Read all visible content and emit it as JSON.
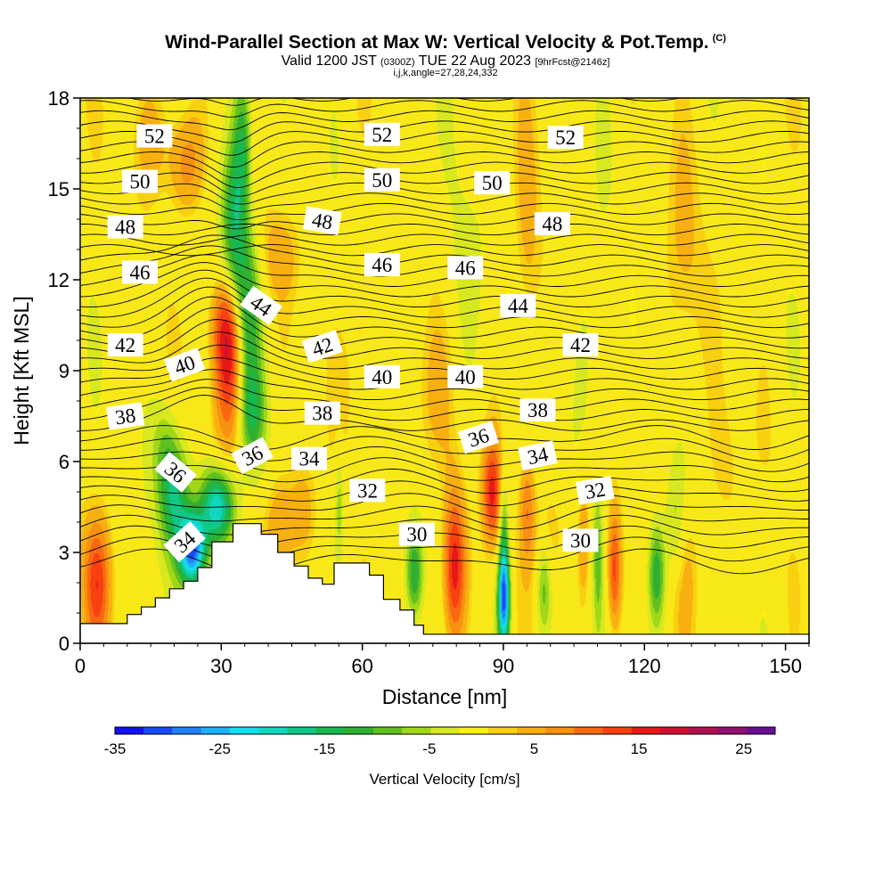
{
  "header": {
    "title": "Wind-Parallel Section at Max W: Vertical Velocity & Pot.Temp.",
    "title_unit": "(C)",
    "subtitle_a": "Valid 1200 JST",
    "subtitle_b": "(0300Z)",
    "subtitle_c": "TUE 22 Aug 2023",
    "subtitle_d": "[9hrFcst@2146z]",
    "subtitle2": "i,j,k,angle=27,28,24,332"
  },
  "chart_data": {
    "type": "heatmap",
    "xlabel": "Distance [nm]",
    "ylabel": "Height [Kft MSL]",
    "xlim": [
      0,
      155
    ],
    "ylim": [
      0,
      18
    ],
    "x_ticks": [
      0,
      30,
      60,
      90,
      120,
      150
    ],
    "y_ticks": [
      0,
      3,
      6,
      9,
      12,
      15,
      18
    ],
    "colorbar": {
      "label": "Vertical Velocity [cm/s]",
      "ticks": [
        -35,
        -25,
        -15,
        -5,
        5,
        15,
        25
      ],
      "range": [
        -35,
        28
      ],
      "colors": [
        "#1010f0",
        "#1a4af8",
        "#2080f8",
        "#20b0f8",
        "#10e0f0",
        "#10d8c0",
        "#10c888",
        "#18b850",
        "#30b030",
        "#60c020",
        "#a0d818",
        "#d8e820",
        "#f8f010",
        "#f8d010",
        "#f8b010",
        "#f89010",
        "#f86810",
        "#f84010",
        "#e81818",
        "#d01030",
        "#b01050",
        "#901070",
        "#6a1090"
      ],
      "background": "#f8e818"
    },
    "isentropes_C": [
      30,
      32,
      34,
      36,
      38,
      40,
      42,
      44,
      46,
      48,
      50,
      52
    ],
    "contour_labels": [
      {
        "v": "52",
        "x": 15.8,
        "y": 16.75
      },
      {
        "v": "52",
        "x": 64.2,
        "y": 16.8
      },
      {
        "v": "52",
        "x": 103.2,
        "y": 16.7
      },
      {
        "v": "50",
        "x": 12.7,
        "y": 15.25
      },
      {
        "v": "50",
        "x": 64.2,
        "y": 15.3
      },
      {
        "v": "50",
        "x": 87.6,
        "y": 15.2
      },
      {
        "v": "48",
        "x": 9.6,
        "y": 13.75
      },
      {
        "v": "48",
        "x": 51.5,
        "y": 13.95,
        "rot": 10
      },
      {
        "v": "48",
        "x": 100.4,
        "y": 13.85
      },
      {
        "v": "46",
        "x": 12.7,
        "y": 12.25
      },
      {
        "v": "46",
        "x": 64.2,
        "y": 12.5
      },
      {
        "v": "46",
        "x": 81.9,
        "y": 12.4
      },
      {
        "v": "44",
        "x": 38.5,
        "y": 11.15,
        "rot": 35
      },
      {
        "v": "44",
        "x": 93.1,
        "y": 11.15
      },
      {
        "v": "42",
        "x": 9.6,
        "y": 9.85
      },
      {
        "v": "42",
        "x": 51.5,
        "y": 9.8,
        "rot": -18
      },
      {
        "v": "42",
        "x": 106.4,
        "y": 9.85
      },
      {
        "v": "40",
        "x": 22.2,
        "y": 9.2,
        "rot": -20
      },
      {
        "v": "40",
        "x": 64.2,
        "y": 8.8
      },
      {
        "v": "40",
        "x": 81.9,
        "y": 8.8
      },
      {
        "v": "38",
        "x": 9.6,
        "y": 7.5,
        "rot": -8
      },
      {
        "v": "38",
        "x": 51.5,
        "y": 7.6
      },
      {
        "v": "38",
        "x": 97.3,
        "y": 7.7
      },
      {
        "v": "36",
        "x": 20.3,
        "y": 5.65,
        "rot": 40
      },
      {
        "v": "36",
        "x": 36.6,
        "y": 6.2,
        "rot": -28
      },
      {
        "v": "36",
        "x": 84.7,
        "y": 6.8,
        "rot": -18
      },
      {
        "v": "34",
        "x": 48.7,
        "y": 6.1
      },
      {
        "v": "34",
        "x": 97.3,
        "y": 6.2,
        "rot": -12
      },
      {
        "v": "34",
        "x": 22.2,
        "y": 3.35,
        "rot": -42
      },
      {
        "v": "32",
        "x": 61.1,
        "y": 5.05
      },
      {
        "v": "32",
        "x": 109.5,
        "y": 5.05,
        "rot": -10
      },
      {
        "v": "30",
        "x": 71.6,
        "y": 3.6
      },
      {
        "v": "30",
        "x": 106.4,
        "y": 3.4
      }
    ],
    "terrain_profile": [
      [
        0,
        0.65
      ],
      [
        10,
        0.65
      ],
      [
        10,
        0.95
      ],
      [
        13,
        0.95
      ],
      [
        13,
        1.2
      ],
      [
        16,
        1.2
      ],
      [
        16,
        1.5
      ],
      [
        19,
        1.5
      ],
      [
        19,
        1.8
      ],
      [
        22,
        1.8
      ],
      [
        22,
        2.05
      ],
      [
        25,
        2.05
      ],
      [
        25,
        2.5
      ],
      [
        28,
        2.5
      ],
      [
        28,
        3.35
      ],
      [
        32.5,
        3.35
      ],
      [
        32.5,
        3.95
      ],
      [
        38.5,
        3.95
      ],
      [
        38.5,
        3.6
      ],
      [
        42,
        3.6
      ],
      [
        42,
        3.0
      ],
      [
        45.5,
        3.0
      ],
      [
        45.5,
        2.55
      ],
      [
        48.5,
        2.55
      ],
      [
        48.5,
        2.15
      ],
      [
        51.5,
        2.15
      ],
      [
        51.5,
        1.95
      ],
      [
        54,
        1.95
      ],
      [
        54,
        2.65
      ],
      [
        61.5,
        2.65
      ],
      [
        61.5,
        2.25
      ],
      [
        64.5,
        2.25
      ],
      [
        64.5,
        1.45
      ],
      [
        68,
        1.45
      ],
      [
        68,
        1.1
      ],
      [
        71,
        1.1
      ],
      [
        71,
        0.6
      ],
      [
        73,
        0.6
      ],
      [
        73,
        0.3
      ],
      [
        155,
        0.3
      ]
    ],
    "updrafts": [
      {
        "x": 31.5,
        "y": 9.3,
        "w": 15,
        "sx": 2.2,
        "sy": 1.8
      },
      {
        "x": 31.0,
        "y": 10.6,
        "w": 7,
        "sx": 2.6,
        "sy": 1.0
      },
      {
        "x": 22.5,
        "y": 15.8,
        "w": 8,
        "sx": 2.6,
        "sy": 1.2
      },
      {
        "x": 3.5,
        "y": 2.0,
        "w": 12,
        "sx": 2.0,
        "sy": 1.5
      },
      {
        "x": 79.5,
        "y": 2.5,
        "w": 17,
        "sx": 1.7,
        "sy": 1.8
      },
      {
        "x": 87.5,
        "y": 5.0,
        "w": 14,
        "sx": 1.4,
        "sy": 1.2
      },
      {
        "x": 95.0,
        "y": 4.5,
        "w": 8,
        "sx": 1.1,
        "sy": 1.3
      },
      {
        "x": 113.5,
        "y": 2.4,
        "w": 13,
        "sx": 1.0,
        "sy": 1.4
      },
      {
        "x": 107.0,
        "y": 3.5,
        "w": 7,
        "sx": 0.9,
        "sy": 1.4
      },
      {
        "x": 42.5,
        "y": 3.8,
        "w": 7,
        "sx": 2.5,
        "sy": 1.2
      },
      {
        "x": 47.5,
        "y": 4.5,
        "w": 5,
        "sx": 2.0,
        "sy": 1.2
      },
      {
        "x": 16.0,
        "y": 16.8,
        "w": 4,
        "sx": 3.5,
        "sy": 1.4
      },
      {
        "x": 42.0,
        "y": 12.8,
        "w": 4,
        "sx": 3.0,
        "sy": 1.0
      },
      {
        "x": 100.0,
        "y": 3.6,
        "w": 4,
        "sx": 2.5,
        "sy": 1.3
      },
      {
        "x": 95.0,
        "y": 13.0,
        "w": 4,
        "sx": 2.0,
        "sy": 3.0
      },
      {
        "x": 128.0,
        "y": 12.0,
        "w": 3.5,
        "sx": 3.0,
        "sy": 3.0
      },
      {
        "x": 74.0,
        "y": 8.0,
        "w": 4,
        "sx": 4.0,
        "sy": 2.0
      },
      {
        "x": 60.0,
        "y": 9.5,
        "w": 3,
        "sx": 3.0,
        "sy": 2.0
      },
      {
        "x": 137.0,
        "y": 5.5,
        "w": 3,
        "sx": 3.0,
        "sy": 2.0
      },
      {
        "x": 128.0,
        "y": 2.5,
        "w": 4,
        "sx": 2.5,
        "sy": 1.5
      }
    ],
    "downdrafts": [
      {
        "x": 23.8,
        "y": 3.1,
        "w": -30,
        "sx": 2.0,
        "sy": 0.8
      },
      {
        "x": 29.0,
        "y": 4.5,
        "w": -22,
        "sx": 2.6,
        "sy": 0.9
      },
      {
        "x": 20.0,
        "y": 4.8,
        "w": -15,
        "sx": 2.3,
        "sy": 1.3
      },
      {
        "x": 35.5,
        "y": 11.0,
        "w": -13,
        "sx": 2.0,
        "sy": 1.8
      },
      {
        "x": 32.5,
        "y": 13.8,
        "w": -13,
        "sx": 1.8,
        "sy": 2.0
      },
      {
        "x": 34.5,
        "y": 16.6,
        "w": -12,
        "sx": 1.4,
        "sy": 1.8
      },
      {
        "x": 36.5,
        "y": 7.6,
        "w": -11,
        "sx": 2.0,
        "sy": 1.2
      },
      {
        "x": 90.0,
        "y": 1.4,
        "w": -27,
        "sx": 0.9,
        "sy": 1.1
      },
      {
        "x": 90.0,
        "y": 3.4,
        "w": -11,
        "sx": 0.7,
        "sy": 1.5
      },
      {
        "x": 71.0,
        "y": 2.3,
        "w": -14,
        "sx": 1.3,
        "sy": 1.1
      },
      {
        "x": 98.5,
        "y": 1.8,
        "w": -9,
        "sx": 1.1,
        "sy": 1.1
      },
      {
        "x": 122.5,
        "y": 2.3,
        "w": -13,
        "sx": 1.3,
        "sy": 1.2
      },
      {
        "x": 126.5,
        "y": 3.8,
        "w": -7,
        "sx": 1.5,
        "sy": 1.5
      },
      {
        "x": 110.0,
        "y": 2.8,
        "w": -8,
        "sx": 0.7,
        "sy": 1.6
      },
      {
        "x": 55.0,
        "y": 4.6,
        "w": -7,
        "sx": 0.7,
        "sy": 1.2
      },
      {
        "x": 18.0,
        "y": 6.5,
        "w": -6,
        "sx": 2.0,
        "sy": 1.2
      },
      {
        "x": 81.0,
        "y": 11.5,
        "w": -3,
        "sx": 3.0,
        "sy": 3.0
      },
      {
        "x": 109.0,
        "y": 10.0,
        "w": -3,
        "sx": 3.0,
        "sy": 3.0
      }
    ]
  }
}
